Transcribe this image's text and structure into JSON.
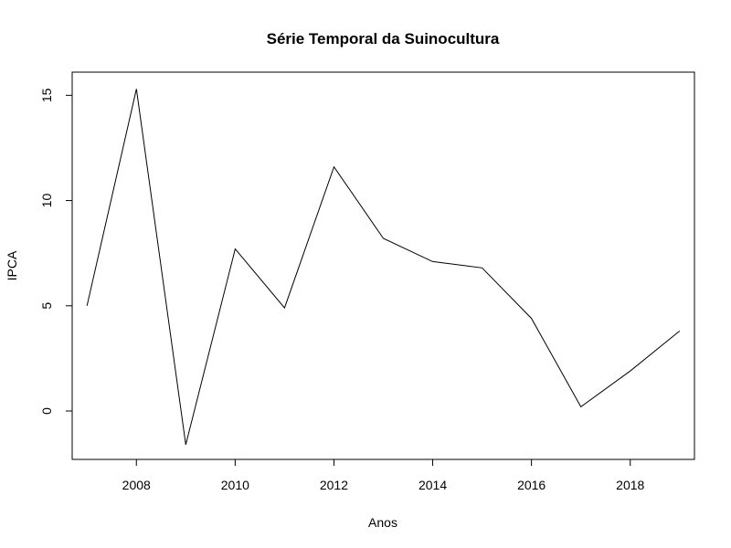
{
  "chart_data": {
    "type": "line",
    "title": "Série Temporal da Suinocultura",
    "xlabel": "Anos",
    "ylabel": "IPCA",
    "xlim": [
      2006.7,
      2019.3
    ],
    "ylim": [
      -2.3,
      16.1
    ],
    "x_ticks": [
      2008,
      2010,
      2012,
      2014,
      2016,
      2018
    ],
    "y_ticks": [
      0,
      5,
      10,
      15
    ],
    "grid": false,
    "legend": "none",
    "line_color": "#000000",
    "series": [
      {
        "x": [
          2007,
          2008,
          2009,
          2010,
          2011,
          2012,
          2013,
          2014,
          2015,
          2016,
          2017,
          2018,
          2019
        ],
        "values": [
          5.0,
          15.3,
          -1.6,
          7.7,
          4.9,
          11.6,
          8.2,
          7.1,
          6.8,
          4.4,
          0.2,
          1.9,
          3.8
        ]
      }
    ]
  }
}
